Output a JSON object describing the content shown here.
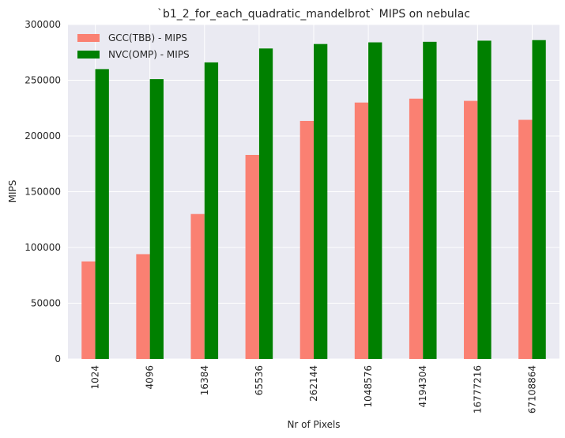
{
  "chart_data": {
    "type": "bar",
    "title": "`b1_2_for_each_quadratic_mandelbrot` MIPS on nebulac",
    "xlabel": "Nr of Pixels",
    "ylabel": "MIPS",
    "categories": [
      "1024",
      "4096",
      "16384",
      "65536",
      "262144",
      "1048576",
      "4194304",
      "16777216",
      "67108864"
    ],
    "series": [
      {
        "name": "GCC(TBB) - MIPS",
        "color": "#fa8072",
        "values": [
          87500,
          94000,
          130000,
          183000,
          213500,
          230000,
          233500,
          231500,
          214500
        ]
      },
      {
        "name": "NVC(OMP) - MIPS",
        "color": "#008000",
        "values": [
          260000,
          251000,
          266000,
          278500,
          282500,
          284000,
          284500,
          285500,
          286000
        ]
      }
    ],
    "ylim": [
      0,
      300000
    ],
    "yticks": [
      "0",
      "50000",
      "100000",
      "150000",
      "200000",
      "250000",
      "300000"
    ],
    "grid": true,
    "legend_position": "top-left"
  }
}
